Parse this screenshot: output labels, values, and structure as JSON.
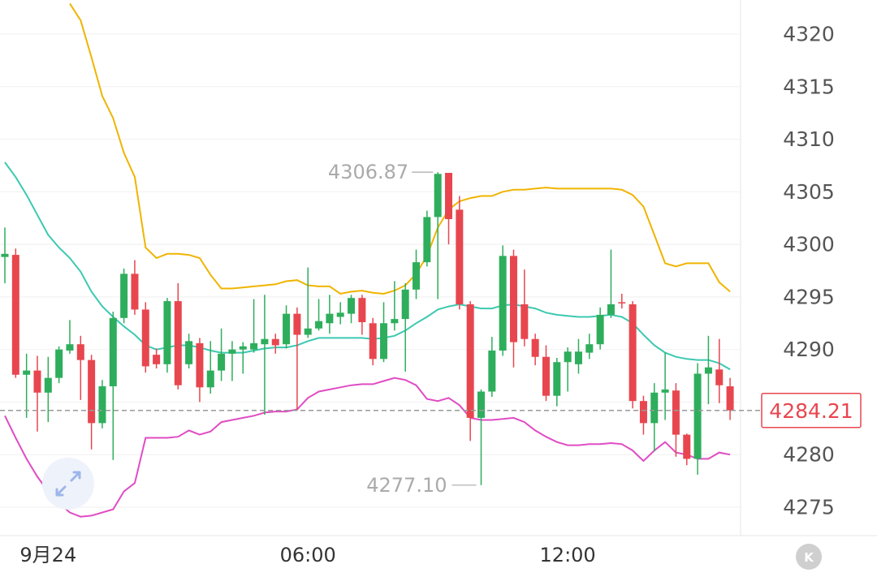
{
  "chart_data": {
    "type": "candlestick",
    "open": [
      4298.8,
      4299.0,
      4287.6,
      4288.0,
      4285.9,
      4287.3,
      4289.9,
      4290.5,
      4289.0,
      4283.0,
      4286.5,
      4293.0,
      4297.2,
      4293.8,
      4289.5,
      4288.6,
      4294.6,
      4288.6,
      4290.6,
      4286.4,
      4288.0,
      4289.6,
      4290.0,
      4290.0,
      4290.5,
      4291.0,
      4290.5,
      4293.4,
      4291.4,
      4292.0,
      4292.5,
      4293.1,
      4293.4,
      4294.9,
      4292.5,
      4289.1,
      4292.5,
      4292.9,
      4295.7,
      4298.3,
      4302.6,
      4306.8,
      4303.3,
      4294.3,
      4283.5,
      4286.0,
      4289.9,
      4298.9,
      4294.3,
      4291.0,
      4289.3,
      4285.6,
      4288.8,
      4288.6,
      4289.7,
      4290.5,
      4293.3,
      4294.5,
      4294.3,
      4285.1,
      4283.0,
      4285.9,
      4286.1,
      4281.9,
      4279.6,
      4287.7,
      4288.1,
      4286.5
    ],
    "high": [
      4301.6,
      4299.6,
      4289.6,
      4289.4,
      4289.3,
      4290.3,
      4292.8,
      4291.3,
      4289.5,
      4287.1,
      4293.6,
      4297.7,
      4298.5,
      4294.5,
      4290.1,
      4294.9,
      4296.3,
      4291.5,
      4291.1,
      4290.8,
      4292.0,
      4290.8,
      4290.7,
      4294.8,
      4295.2,
      4291.5,
      4294.2,
      4294.0,
      4297.8,
      4294.8,
      4295.2,
      4294.5,
      4295.2,
      4295.2,
      4293.0,
      4294.5,
      4296.5,
      4296.3,
      4299.5,
      4303.2,
      4306.87,
      4306.8,
      4304.6,
      4294.6,
      4286.2,
      4291.2,
      4299.9,
      4299.5,
      4297.6,
      4291.5,
      4290.4,
      4289.2,
      4290.2,
      4291.0,
      4291.5,
      4294.0,
      4299.5,
      4295.3,
      4294.6,
      4285.6,
      4286.8,
      4289.7,
      4286.8,
      4282.0,
      4288.7,
      4291.3,
      4291.0,
      4287.3
    ],
    "low": [
      4296.3,
      4287.3,
      4283.5,
      4282.2,
      4283.1,
      4286.8,
      4289.6,
      4285.2,
      4280.5,
      4282.5,
      4279.5,
      4292.5,
      4293.3,
      4287.8,
      4288.2,
      4287.8,
      4286.2,
      4288.2,
      4285.0,
      4285.8,
      4287.0,
      4287.0,
      4287.7,
      4289.7,
      4283.8,
      4289.6,
      4290.1,
      4284.2,
      4291.1,
      4291.8,
      4291.5,
      4292.4,
      4292.5,
      4291.4,
      4288.5,
      4288.8,
      4291.8,
      4287.9,
      4294.8,
      4297.9,
      4294.8,
      4300.0,
      4293.8,
      4281.3,
      4277.1,
      4285.5,
      4289.4,
      4288.3,
      4290.3,
      4288.5,
      4285.1,
      4284.6,
      4286.0,
      4287.7,
      4289.1,
      4290.0,
      4293.0,
      4293.9,
      4284.4,
      4281.9,
      4280.3,
      4283.3,
      4279.8,
      4279.0,
      4278.1,
      4284.8,
      4284.9,
      4283.3
    ],
    "close": [
      4299.1,
      4287.6,
      4288.0,
      4285.9,
      4287.3,
      4290.0,
      4290.5,
      4289.0,
      4283.0,
      4286.5,
      4293.0,
      4297.2,
      4293.8,
      4288.4,
      4288.6,
      4294.6,
      4286.6,
      4290.8,
      4286.4,
      4288.0,
      4289.6,
      4290.0,
      4290.3,
      4290.6,
      4291.0,
      4290.4,
      4293.4,
      4291.4,
      4292.0,
      4292.7,
      4293.4,
      4293.5,
      4294.9,
      4292.6,
      4289.1,
      4292.5,
      4292.9,
      4295.7,
      4298.3,
      4302.6,
      4306.7,
      4302.4,
      4294.3,
      4283.5,
      4286.0,
      4289.9,
      4298.9,
      4290.7,
      4291.0,
      4289.3,
      4285.6,
      4288.8,
      4289.8,
      4289.8,
      4290.5,
      4293.3,
      4294.3,
      4294.4,
      4285.1,
      4283.0,
      4285.9,
      4286.2,
      4281.9,
      4279.6,
      4287.7,
      4288.3,
      4286.6,
      4284.21
    ],
    "up_color": "#2eae5c",
    "down_color": "#e8464f",
    "lines": [
      {
        "color": "#f0b400",
        "values": [
          null,
          null,
          null,
          null,
          null,
          null,
          4322.9,
          4321.3,
          4317.8,
          4314.1,
          4312.0,
          4308.7,
          4306.4,
          4299.7,
          4298.7,
          4299.1,
          4299.1,
          4299.0,
          4298.7,
          4297.1,
          4295.8,
          4295.8,
          4295.9,
          4296.0,
          4296.1,
          4296.2,
          4296.5,
          4296.6,
          4296.1,
          4296.0,
          4296.0,
          4295.3,
          4295.5,
          4295.6,
          4295.4,
          4295.3,
          4295.6,
          4296.1,
          4297.2,
          4298.9,
          4301.6,
          4303.3,
          4304.1,
          4304.4,
          4304.6,
          4304.6,
          4305.0,
          4305.2,
          4305.2,
          4305.3,
          4305.4,
          4305.3,
          4305.3,
          4305.3,
          4305.3,
          4305.3,
          4305.3,
          4305.2,
          4304.7,
          4303.6,
          4300.9,
          4298.2,
          4297.9,
          4298.2,
          4298.2,
          4298.2,
          4296.4,
          4295.5
        ]
      },
      {
        "color": "#3cc9b0",
        "values": [
          4307.8,
          4306.4,
          4304.7,
          4302.8,
          4300.9,
          4299.7,
          4298.7,
          4297.4,
          4295.5,
          4294.1,
          4293.1,
          4292.2,
          4291.4,
          4290.4,
          4290.0,
          4290.2,
          4290.4,
          4290.4,
          4290.2,
          4289.9,
          4289.7,
          4289.7,
          4289.7,
          4289.9,
          4290.1,
          4290.2,
          4290.2,
          4290.4,
          4290.8,
          4291.1,
          4291.1,
          4291.1,
          4291.1,
          4291.1,
          4291.0,
          4291.1,
          4291.3,
          4291.8,
          4292.5,
          4293.1,
          4293.8,
          4294.1,
          4294.3,
          4294.1,
          4293.9,
          4293.9,
          4294.2,
          4294.3,
          4294.1,
          4293.9,
          4293.5,
          4293.3,
          4293.2,
          4293.1,
          4293.1,
          4293.2,
          4293.3,
          4293.1,
          4292.5,
          4291.4,
          4290.4,
          4289.7,
          4289.3,
          4289.1,
          4289.0,
          4289.0,
          4288.7,
          4288.1
        ]
      },
      {
        "color": "#e04cc4",
        "values": [
          4283.7,
          4281.6,
          4279.6,
          4277.9,
          4276.5,
          4275.4,
          4274.5,
          4274.1,
          4274.2,
          4274.5,
          4274.8,
          4276.5,
          4277.3,
          4281.6,
          4281.6,
          4281.6,
          4281.7,
          4282.3,
          4281.9,
          4282.2,
          4283.1,
          4283.3,
          4283.5,
          4283.7,
          4284.0,
          4284.1,
          4284.1,
          4284.3,
          4285.4,
          4286.0,
          4286.2,
          4286.4,
          4286.6,
          4286.7,
          4286.7,
          4287.0,
          4287.3,
          4287.1,
          4286.6,
          4285.3,
          4285.1,
          4285.4,
          4284.7,
          4283.5,
          4283.3,
          4283.3,
          4283.4,
          4283.5,
          4283.1,
          4282.3,
          4281.7,
          4281.2,
          4280.9,
          4280.9,
          4281.0,
          4281.0,
          4281.1,
          4281.0,
          4280.4,
          4279.4,
          4280.4,
          4281.2,
          4280.2,
          4280.0,
          4279.6,
          4279.6,
          4280.2,
          4280.0
        ]
      }
    ],
    "xlim": [
      -0.45,
      67.97
    ],
    "xticks": [
      {
        "value": 4,
        "label": "9月24"
      },
      {
        "value": 28,
        "label": "06:00"
      },
      {
        "value": 52,
        "label": "12:00"
      }
    ],
    "ylim": [
      4272.3,
      4323.24
    ],
    "yticks": [
      4275,
      4280,
      4285,
      4290,
      4295,
      4300,
      4305,
      4310,
      4315,
      4320
    ],
    "grid": true,
    "max_label": "4306.87",
    "min_label": "4277.10",
    "last_price_label": "4284.21",
    "last_price_color": "#e8464f",
    "k_button": "K"
  }
}
